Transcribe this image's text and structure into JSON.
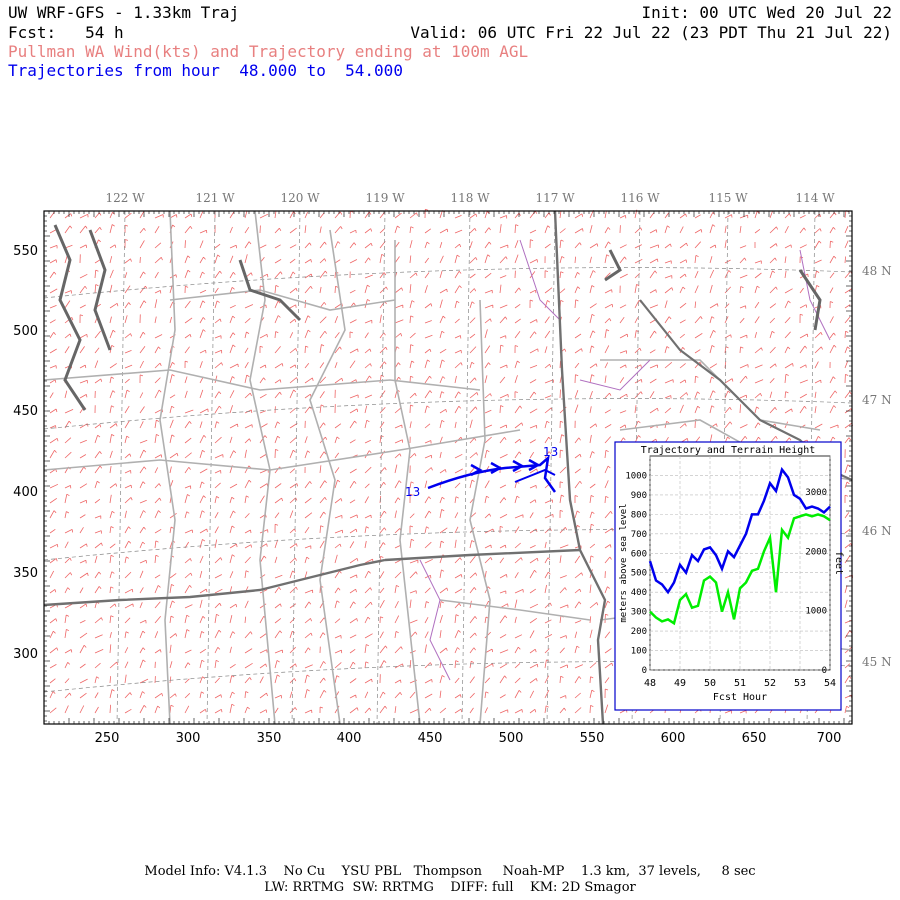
{
  "header": {
    "title": "UW WRF-GFS - 1.33km Traj",
    "init": "Init: 00 UTC Wed 20 Jul 22",
    "fcst_label": "Fcst:",
    "fcst_value": "54 h",
    "valid": "Valid: 06 UTC Fri 22 Jul 22 (23 PDT Thu 21 Jul 22)",
    "subtitle": "Pullman WA Wind(kts) and Trajectory ending at 100m AGL",
    "traj_range": "Trajectories from hour  48.000 to  54.000"
  },
  "map": {
    "lon_labels": [
      "122 W",
      "121 W",
      "120 W",
      "119 W",
      "118 W",
      "117 W",
      "116 W",
      "115 W",
      "114 W"
    ],
    "lat_labels": [
      "48 N",
      "47 N",
      "46 N",
      "45 N"
    ],
    "x_ticks": [
      "250",
      "300",
      "350",
      "400",
      "450",
      "500",
      "550",
      "600",
      "650",
      "700"
    ],
    "y_ticks": [
      "550",
      "500",
      "450",
      "400",
      "350",
      "300"
    ],
    "traj_start_label": "13",
    "traj_end_label": "13"
  },
  "inset": {
    "title": "Trajectory and Terrain Height",
    "ylabel_left": "meters above sea level",
    "ylabel_right": "feet",
    "xlabel": "Fcst Hour",
    "x_ticks": [
      "48",
      "49",
      "50",
      "51",
      "52",
      "53",
      "54"
    ],
    "y_ticks_left": [
      "1000",
      "900",
      "800",
      "700",
      "600",
      "500",
      "400",
      "300",
      "200",
      "100",
      "0"
    ],
    "y_ticks_right": [
      "3000",
      "2000",
      "1000",
      "0"
    ]
  },
  "chart_data": {
    "type": "line",
    "title": "Trajectory and Terrain Height",
    "xlabel": "Fcst Hour",
    "ylabel": "meters above sea level",
    "xlim": [
      48,
      54
    ],
    "ylim": [
      0,
      1100
    ],
    "series": [
      {
        "color": "#0000ee",
        "x": [
          48.0,
          48.2,
          48.4,
          48.6,
          48.8,
          49.0,
          49.2,
          49.4,
          49.6,
          49.8,
          50.0,
          50.2,
          50.4,
          50.6,
          50.8,
          51.0,
          51.2,
          51.4,
          51.6,
          51.8,
          52.0,
          52.2,
          52.4,
          52.6,
          52.8,
          53.0,
          53.2,
          53.4,
          53.6,
          53.8,
          54.0
        ],
        "y": [
          560,
          460,
          440,
          400,
          450,
          540,
          500,
          590,
          560,
          620,
          630,
          590,
          520,
          610,
          580,
          640,
          700,
          800,
          800,
          870,
          960,
          920,
          1030,
          990,
          900,
          880,
          830,
          840,
          830,
          810,
          840
        ]
      },
      {
        "color": "#00ee00",
        "x": [
          48.0,
          48.2,
          48.4,
          48.6,
          48.8,
          49.0,
          49.2,
          49.4,
          49.6,
          49.8,
          50.0,
          50.2,
          50.4,
          50.6,
          50.8,
          51.0,
          51.2,
          51.4,
          51.6,
          51.8,
          52.0,
          52.2,
          52.4,
          52.6,
          52.8,
          53.0,
          53.2,
          53.4,
          53.6,
          53.8,
          54.0
        ],
        "y": [
          300,
          270,
          250,
          260,
          240,
          360,
          390,
          320,
          330,
          460,
          480,
          450,
          300,
          400,
          260,
          420,
          450,
          510,
          520,
          610,
          680,
          400,
          720,
          680,
          780,
          790,
          800,
          790,
          800,
          790,
          770
        ]
      }
    ]
  },
  "footer": {
    "line1": "Model Info: V4.1.3    No Cu    YSU PBL   Thompson     Noah-MP    1.3 km,  37 levels,     8 sec",
    "line2": "LW: RRTMG  SW: RRTMG    DIFF: full    KM: 2D Smagor"
  }
}
